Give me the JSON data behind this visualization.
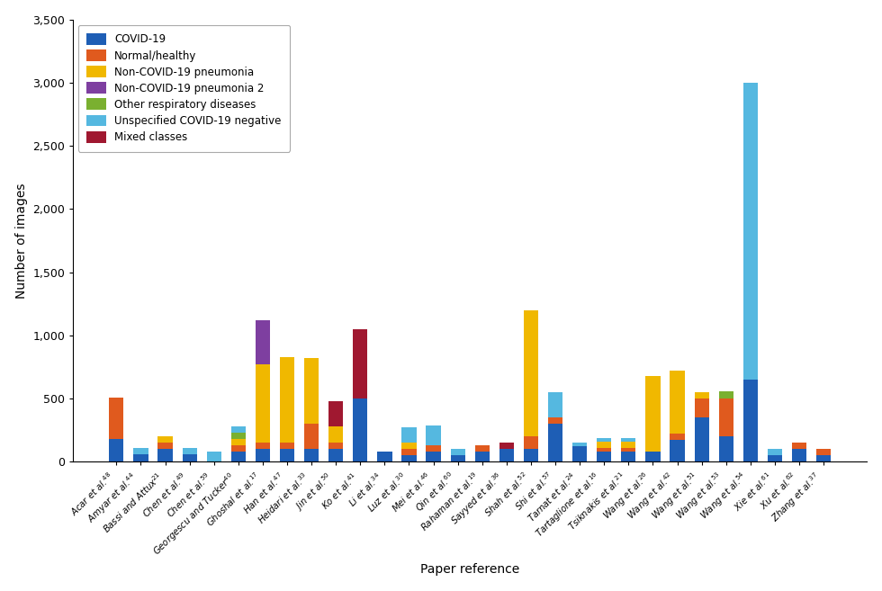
{
  "categories_display": [
    "Acar et al.$^{48}$",
    "Amyar et al.$^{44}$",
    "Bassi and Attux$^{21}$",
    "Chen et al.$^{49}$",
    "Chen et al.$^{59}$",
    "Georgescu and Tucker$^{40}$",
    "Ghoshal et al.$^{17}$",
    "Han et al.$^{47}$",
    "Heidari et al.$^{33}$",
    "Jin et al.$^{50}$",
    "Ko et al.$^{41}$",
    "Li et al.$^{34}$",
    "Luz et al.$^{30}$",
    "Mei et al.$^{46}$",
    "Qin et al.$^{60}$",
    "Rahaman et al.$^{19}$",
    "Sayyed et al.$^{36}$",
    "Shah et al.$^{52}$",
    "Shi et al.$^{57}$",
    "Tarnat et al.$^{24}$",
    "Tartaglione et al.$^{16}$",
    "Tsiknakis et al.$^{21}$",
    "Wang et al.$^{26}$",
    "Wang et al.$^{42}$",
    "Wang et al.$^{51}$",
    "Wang et al.$^{53}$",
    "Wang et al.$^{54}$",
    "Xie et al.$^{61}$",
    "Xu et al.$^{62}$",
    "Zhang et al.$^{37}$"
  ],
  "legend_labels": [
    "COVID-19",
    "Normal/healthy",
    "Non-COVID-19 pneumonia",
    "Non-COVID-19 pneumonia 2",
    "Other respiratory diseases",
    "Unspecified COVID-19 negative",
    "Mixed classes"
  ],
  "colors": [
    "#1e5eb5",
    "#e05a1e",
    "#f0b800",
    "#7e3fa0",
    "#7ab030",
    "#55b8e0",
    "#a01830"
  ],
  "data": {
    "COVID-19": [
      180,
      60,
      100,
      60,
      0,
      80,
      100,
      100,
      100,
      100,
      500,
      80,
      50,
      80,
      50,
      80,
      100,
      100,
      300,
      120,
      80,
      80,
      80,
      170,
      350,
      200,
      650,
      50,
      100,
      50
    ],
    "Normal/healthy": [
      330,
      0,
      50,
      0,
      0,
      50,
      50,
      50,
      200,
      50,
      0,
      0,
      50,
      50,
      0,
      50,
      0,
      100,
      50,
      0,
      30,
      30,
      0,
      50,
      150,
      300,
      0,
      0,
      50,
      50
    ],
    "Non-COVID-19 pneumonia": [
      0,
      0,
      50,
      0,
      0,
      50,
      620,
      680,
      520,
      130,
      0,
      0,
      50,
      0,
      0,
      0,
      0,
      1000,
      0,
      0,
      50,
      50,
      600,
      500,
      50,
      0,
      0,
      0,
      0,
      0
    ],
    "Non-COVID-19 pneumonia 2": [
      0,
      0,
      0,
      0,
      0,
      0,
      350,
      0,
      0,
      0,
      0,
      0,
      0,
      0,
      0,
      0,
      0,
      0,
      0,
      0,
      0,
      0,
      0,
      0,
      0,
      0,
      0,
      0,
      0,
      0
    ],
    "Other respiratory diseases": [
      0,
      0,
      0,
      0,
      0,
      50,
      0,
      0,
      0,
      0,
      0,
      0,
      0,
      0,
      0,
      0,
      0,
      0,
      0,
      0,
      0,
      0,
      0,
      0,
      0,
      60,
      0,
      0,
      0,
      0
    ],
    "Unspecified COVID-19 negative": [
      0,
      50,
      0,
      50,
      80,
      50,
      0,
      0,
      0,
      0,
      0,
      0,
      120,
      160,
      50,
      0,
      0,
      0,
      200,
      30,
      30,
      30,
      0,
      0,
      0,
      0,
      2350,
      50,
      0,
      0
    ],
    "Mixed classes": [
      0,
      0,
      0,
      0,
      0,
      0,
      0,
      0,
      0,
      200,
      550,
      0,
      0,
      0,
      0,
      0,
      50,
      0,
      0,
      0,
      0,
      0,
      0,
      0,
      0,
      0,
      0,
      0,
      0,
      0
    ]
  },
  "ylabel": "Number of images",
  "xlabel": "Paper reference",
  "ylim": [
    0,
    3500
  ],
  "yticks": [
    0,
    500,
    1000,
    1500,
    2000,
    2500,
    3000,
    3500
  ]
}
